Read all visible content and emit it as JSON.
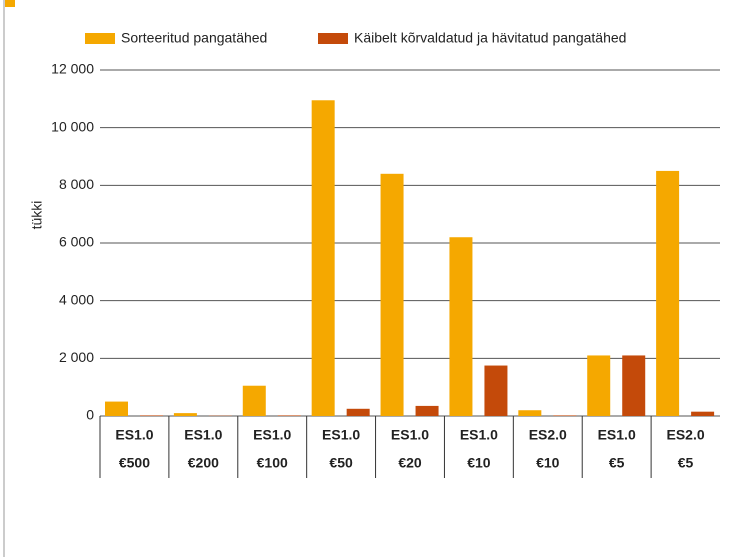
{
  "chart_data": {
    "type": "bar",
    "y_label": "tükki",
    "categories": [
      [
        "ES1.0",
        "€500"
      ],
      [
        "ES1.0",
        "€200"
      ],
      [
        "ES1.0",
        "€100"
      ],
      [
        "ES1.0",
        "€50"
      ],
      [
        "ES1.0",
        "€20"
      ],
      [
        "ES1.0",
        "€10"
      ],
      [
        "ES2.0",
        "€10"
      ],
      [
        "ES1.0",
        "€5"
      ],
      [
        "ES2.0",
        "€5"
      ]
    ],
    "series": [
      {
        "name": "Sorteeritud pangatähed",
        "color": "#f5a800",
        "values": [
          500,
          100,
          1050,
          10950,
          8400,
          6200,
          200,
          2100,
          8500
        ]
      },
      {
        "name": "Käibelt kõrvaldatud ja hävitatud pangatähed",
        "color": "#c44a0a",
        "values": [
          20,
          10,
          20,
          250,
          350,
          1750,
          20,
          2100,
          150
        ]
      }
    ],
    "ylim": [
      0,
      12000
    ],
    "yticks": [
      0,
      {
        "value": 2000,
        "label": "2 000"
      },
      {
        "value": 4000,
        "label": "4 000"
      },
      {
        "value": 6000,
        "label": "6 000"
      },
      {
        "value": 8000,
        "label": "8 000"
      },
      {
        "value": 10000,
        "label": "10 000"
      },
      {
        "value": 12000,
        "label": "12 000"
      }
    ],
    "grid": true
  }
}
